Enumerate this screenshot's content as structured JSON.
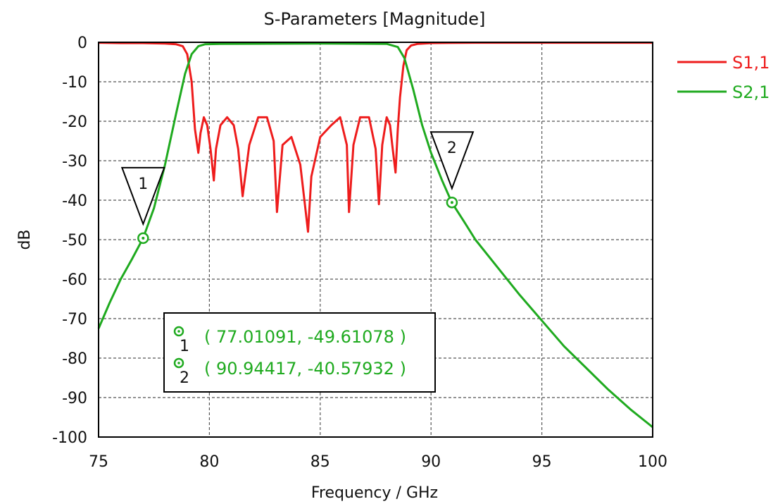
{
  "chart_data": {
    "type": "line",
    "title": "S-Parameters [Magnitude]",
    "xlabel": "Frequency / GHz",
    "ylabel": "dB",
    "xlim": [
      75,
      100
    ],
    "ylim": [
      -100,
      0
    ],
    "xticks": [
      75,
      80,
      85,
      90,
      95,
      100
    ],
    "yticks": [
      0,
      -10,
      -20,
      -30,
      -40,
      -50,
      -60,
      -70,
      -80,
      -90,
      -100
    ],
    "grid": true,
    "legend_position": "right",
    "series": [
      {
        "name": "S1,1",
        "color": "#ee1c1c",
        "x": [
          75,
          76,
          77,
          78,
          78.5,
          78.8,
          79.0,
          79.2,
          79.35,
          79.5,
          79.6,
          79.75,
          79.9,
          80.05,
          80.2,
          80.3,
          80.5,
          80.8,
          81.1,
          81.3,
          81.5,
          81.8,
          82.2,
          82.6,
          82.9,
          83.05,
          83.3,
          83.7,
          84.1,
          84.35,
          84.45,
          84.6,
          85.0,
          85.5,
          85.9,
          86.2,
          86.3,
          86.5,
          86.8,
          87.2,
          87.5,
          87.65,
          87.8,
          88.0,
          88.15,
          88.25,
          88.4,
          88.5,
          88.6,
          88.75,
          88.9,
          89.1,
          89.4,
          90,
          92,
          95,
          100
        ],
        "y": [
          -0.1,
          -0.2,
          -0.2,
          -0.3,
          -0.5,
          -1,
          -3,
          -10,
          -22,
          -28,
          -23,
          -19,
          -21,
          -27,
          -35,
          -27,
          -21,
          -19,
          -21,
          -27,
          -39,
          -26,
          -19,
          -19,
          -25,
          -43,
          -26,
          -24,
          -31,
          -43,
          -48,
          -34,
          -24,
          -21,
          -19,
          -26,
          -43,
          -26,
          -19,
          -19,
          -27,
          -41,
          -26,
          -19,
          -21,
          -26,
          -33,
          -22,
          -14,
          -6,
          -2,
          -0.8,
          -0.4,
          -0.2,
          -0.1,
          -0.1,
          -0.1
        ]
      },
      {
        "name": "S2,1",
        "color": "#1faa1f",
        "x": [
          75,
          75.5,
          76,
          76.5,
          77.01,
          77.5,
          78.0,
          78.5,
          78.9,
          79.2,
          79.5,
          79.8,
          80.5,
          85,
          88,
          88.5,
          88.8,
          89.2,
          89.6,
          90.0,
          90.5,
          90.94,
          91.5,
          92,
          93,
          94,
          95,
          96,
          97,
          98,
          99,
          100
        ],
        "y": [
          -72.5,
          -66,
          -60,
          -55,
          -49.6,
          -42,
          -31,
          -18,
          -8,
          -3,
          -1,
          -0.5,
          -0.4,
          -0.3,
          -0.4,
          -1.2,
          -4,
          -12,
          -21,
          -28,
          -35,
          -40.6,
          -45.5,
          -50,
          -57,
          -64,
          -70.5,
          -77,
          -82.5,
          -88,
          -93,
          -97.5
        ]
      }
    ],
    "markers": [
      {
        "label": "1",
        "x": 77.01091,
        "y": -49.61078
      },
      {
        "label": "2",
        "x": 90.94417,
        "y": -40.57932
      }
    ],
    "marker_table": [
      {
        "id": "1",
        "text": "( 77.01091, -49.61078 )"
      },
      {
        "id": "2",
        "text": "( 90.94417, -40.57932 )"
      }
    ]
  }
}
